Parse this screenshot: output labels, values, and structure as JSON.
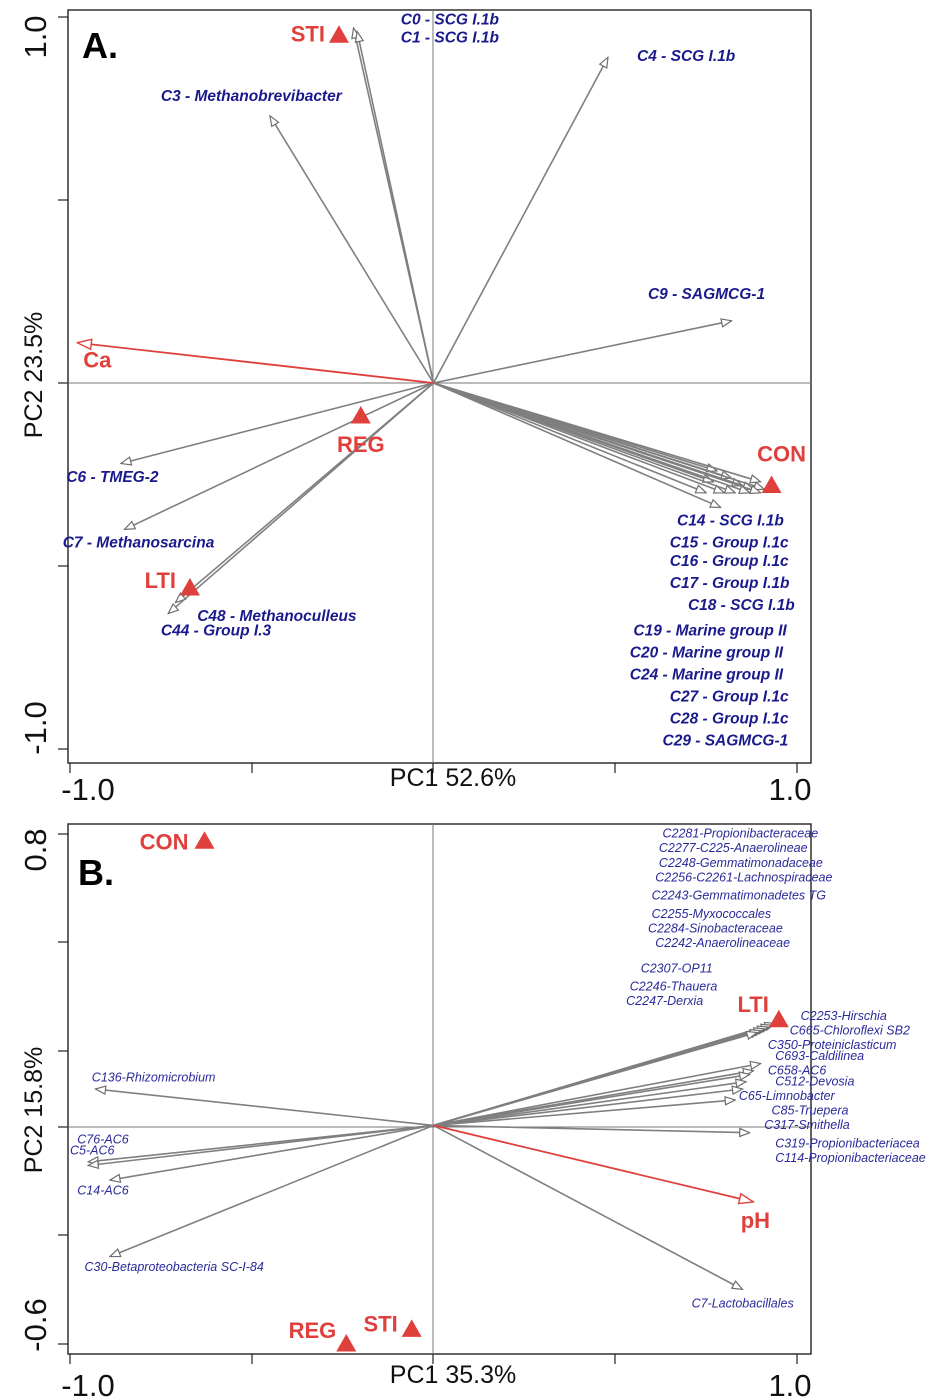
{
  "figure": {
    "colors": {
      "species": "#7f7f7f",
      "env": "#e0403c",
      "sample": "#e0403c",
      "taxon_text": "#1a1a8c"
    },
    "icons": {
      "species_arrowhead": "open-triangle-head",
      "env_arrowhead": "open-triangle-head",
      "sample_marker": "filled-triangle"
    }
  },
  "chart_data": [
    {
      "type": "scatter",
      "panel_label": "A.",
      "xlabel": "PC1 52.6%",
      "ylabel": "PC2 23.5%",
      "xlim": [
        -1.0,
        1.0
      ],
      "ylim": [
        -1.0,
        1.0
      ],
      "x_ticks": [
        "-1.0",
        "1.0"
      ],
      "y_ticks": [
        "1.0",
        "-1.0"
      ],
      "grid": false,
      "samples": [
        {
          "name": "STI",
          "x": -0.26,
          "y": 0.95
        },
        {
          "name": "REG",
          "x": -0.2,
          "y": -0.09
        },
        {
          "name": "CON",
          "x": 0.93,
          "y": -0.28
        },
        {
          "name": "LTI",
          "x": -0.67,
          "y": -0.56
        }
      ],
      "env_vectors": [
        {
          "name": "Ca",
          "x": -0.98,
          "y": 0.11
        }
      ],
      "species_vectors": [
        {
          "x": -0.22,
          "y": 0.97
        },
        {
          "x": -0.21,
          "y": 0.96
        },
        {
          "x": 0.48,
          "y": 0.89
        },
        {
          "x": -0.45,
          "y": 0.73
        },
        {
          "x": 0.82,
          "y": 0.17
        },
        {
          "x": -0.86,
          "y": -0.22
        },
        {
          "x": -0.85,
          "y": -0.4
        },
        {
          "x": -0.71,
          "y": -0.6
        },
        {
          "x": -0.73,
          "y": -0.63
        },
        {
          "x": 0.78,
          "y": -0.24
        },
        {
          "x": 0.82,
          "y": -0.26
        },
        {
          "x": 0.85,
          "y": -0.28
        },
        {
          "x": 0.88,
          "y": -0.29
        },
        {
          "x": 0.91,
          "y": -0.29
        },
        {
          "x": 0.77,
          "y": -0.27
        },
        {
          "x": 0.8,
          "y": -0.3
        },
        {
          "x": 0.83,
          "y": -0.3
        },
        {
          "x": 0.87,
          "y": -0.3
        },
        {
          "x": 0.9,
          "y": -0.3
        },
        {
          "x": 0.75,
          "y": -0.3
        },
        {
          "x": 0.9,
          "y": -0.27
        },
        {
          "x": 0.79,
          "y": -0.34
        }
      ],
      "taxon_labels": [
        {
          "text": "C0 - SCG I.1b",
          "x": -0.09,
          "y": 0.98
        },
        {
          "text": "C1 - SCG I.1b",
          "x": -0.09,
          "y": 0.93
        },
        {
          "text": "C4 - SCG I.1b",
          "x": 0.56,
          "y": 0.88
        },
        {
          "text": "C3 - Methanobrevibacter",
          "x": -0.75,
          "y": 0.77
        },
        {
          "text": "C9 - SAGMCG-1",
          "x": 0.59,
          "y": 0.23
        },
        {
          "text": "C6 - TMEG-2",
          "x": -1.01,
          "y": -0.27
        },
        {
          "text": "C7 - Methanosarcina",
          "x": -1.02,
          "y": -0.45
        },
        {
          "text": "C48 - Methanoculleus",
          "x": -0.65,
          "y": -0.65
        },
        {
          "text": "C44 - Group I.3",
          "x": -0.75,
          "y": -0.69
        },
        {
          "text": "C14 - SCG I.1b",
          "x": 0.67,
          "y": -0.39
        },
        {
          "text": "C15 - Group I.1c",
          "x": 0.65,
          "y": -0.45
        },
        {
          "text": "C16 - Group I.1c",
          "x": 0.65,
          "y": -0.5
        },
        {
          "text": "C17 - Group I.1b",
          "x": 0.65,
          "y": -0.56
        },
        {
          "text": "C18 - SCG I.1b",
          "x": 0.7,
          "y": -0.62
        },
        {
          "text": "C19 - Marine group II",
          "x": 0.55,
          "y": -0.69
        },
        {
          "text": "C20 - Marine group II",
          "x": 0.54,
          "y": -0.75
        },
        {
          "text": "C24 - Marine group II",
          "x": 0.54,
          "y": -0.81
        },
        {
          "text": "C27 - Group I.1c",
          "x": 0.65,
          "y": -0.87
        },
        {
          "text": "C28 - Group I.1c",
          "x": 0.65,
          "y": -0.93
        },
        {
          "text": "C29 - SAGMCG-1",
          "x": 0.63,
          "y": -0.99
        }
      ]
    },
    {
      "type": "scatter",
      "panel_label": "B.",
      "xlabel": "PC1 35.3%",
      "ylabel": "PC2 15.8%",
      "xlim": [
        -1.0,
        1.0
      ],
      "ylim": [
        -0.6,
        0.8
      ],
      "x_ticks": [
        "-1.0",
        "1.0"
      ],
      "y_ticks": [
        "0.8",
        "-0.6"
      ],
      "grid": false,
      "samples": [
        {
          "name": "CON",
          "x": -0.63,
          "y": 0.78
        },
        {
          "name": "LTI",
          "x": 0.95,
          "y": 0.29
        },
        {
          "name": "STI",
          "x": -0.06,
          "y": -0.56
        },
        {
          "name": "REG",
          "x": -0.24,
          "y": -0.6
        }
      ],
      "env_vectors": [
        {
          "name": "pH",
          "x": 0.88,
          "y": -0.21
        }
      ],
      "species_vectors": [
        {
          "x": 0.94,
          "y": 0.28
        },
        {
          "x": 0.93,
          "y": 0.275
        },
        {
          "x": 0.92,
          "y": 0.27
        },
        {
          "x": 0.91,
          "y": 0.265
        },
        {
          "x": 0.9,
          "y": 0.26
        },
        {
          "x": 0.89,
          "y": 0.255
        },
        {
          "x": 0.9,
          "y": 0.17
        },
        {
          "x": 0.88,
          "y": 0.15
        },
        {
          "x": 0.87,
          "y": 0.14
        },
        {
          "x": 0.86,
          "y": 0.12
        },
        {
          "x": 0.85,
          "y": 0.1
        },
        {
          "x": 0.83,
          "y": 0.07
        },
        {
          "x": 0.87,
          "y": -0.02
        },
        {
          "x": 0.85,
          "y": -0.45
        },
        {
          "x": -0.93,
          "y": 0.1
        },
        {
          "x": -0.95,
          "y": -0.1
        },
        {
          "x": -0.95,
          "y": -0.11
        },
        {
          "x": -0.89,
          "y": -0.15
        },
        {
          "x": -0.89,
          "y": -0.36
        }
      ],
      "taxon_labels": [
        {
          "text": "C2281-Propionibacteraceae",
          "x": 0.63,
          "y": 0.79
        },
        {
          "text": "C2277-C225-Anaerolineae",
          "x": 0.62,
          "y": 0.75
        },
        {
          "text": "C2248-Gemmatimonadaceae",
          "x": 0.62,
          "y": 0.71
        },
        {
          "text": "C2256-C2261-Lachnospiraceae",
          "x": 0.61,
          "y": 0.67
        },
        {
          "text": "C2243-Gemmatimonadetes TG",
          "x": 0.6,
          "y": 0.62
        },
        {
          "text": "C2255-Myxococcales",
          "x": 0.6,
          "y": 0.57
        },
        {
          "text": "C2284-Sinobacteraceae",
          "x": 0.59,
          "y": 0.53
        },
        {
          "text": "C2242-Anaerolineaceae",
          "x": 0.61,
          "y": 0.49
        },
        {
          "text": "C2307-OP11",
          "x": 0.57,
          "y": 0.42
        },
        {
          "text": "C2246-Thauera",
          "x": 0.54,
          "y": 0.37
        },
        {
          "text": "C2247-Derxia",
          "x": 0.53,
          "y": 0.33
        },
        {
          "text": "C2253-Hirschia",
          "x": 1.01,
          "y": 0.29
        },
        {
          "text": "C665-Chloroflexi SB2",
          "x": 0.98,
          "y": 0.25
        },
        {
          "text": "C350-Proteiniclasticum",
          "x": 0.92,
          "y": 0.21
        },
        {
          "text": "C693-Caldilinea",
          "x": 0.94,
          "y": 0.18
        },
        {
          "text": "C658-AC6",
          "x": 0.92,
          "y": 0.14
        },
        {
          "text": "C512-Devosia",
          "x": 0.94,
          "y": 0.11
        },
        {
          "text": "C65-Limnobacter",
          "x": 0.84,
          "y": 0.07
        },
        {
          "text": "C85-Truepera",
          "x": 0.93,
          "y": 0.03
        },
        {
          "text": "C317-Smithella",
          "x": 0.91,
          "y": -0.01
        },
        {
          "text": "C319-Propionibacteriacea",
          "x": 0.94,
          "y": -0.06
        },
        {
          "text": "C114-Propionibacteriaceae",
          "x": 0.94,
          "y": -0.1
        },
        {
          "text": "C7-Lactobacillales",
          "x": 0.71,
          "y": -0.5
        },
        {
          "text": "C136-Rhizomicrobium",
          "x": -0.94,
          "y": 0.12
        },
        {
          "text": "C76-AC6",
          "x": -0.98,
          "y": -0.05
        },
        {
          "text": "C5-AC6",
          "x": -1.0,
          "y": -0.08
        },
        {
          "text": "C14-AC6",
          "x": -0.98,
          "y": -0.19
        },
        {
          "text": "C30-Betaproteobacteria SC-I-84",
          "x": -0.96,
          "y": -0.4
        }
      ]
    }
  ]
}
